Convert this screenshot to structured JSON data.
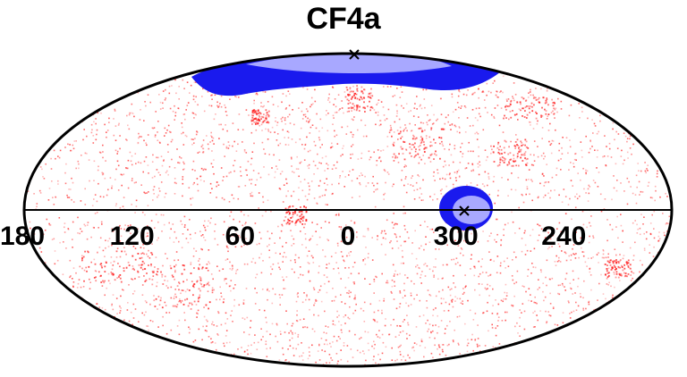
{
  "chart_data": {
    "type": "scatter",
    "title": "CF4a",
    "projection": "mollweide",
    "axis": "galactic longitude",
    "tick_labels": [
      {
        "lon": 180,
        "label": "180"
      },
      {
        "lon": 120,
        "label": "120"
      },
      {
        "lon": 60,
        "label": "60"
      },
      {
        "lon": 0,
        "label": "0"
      },
      {
        "lon": 300,
        "label": "300"
      },
      {
        "lon": 240,
        "label": "240"
      }
    ],
    "grid": "equator only",
    "series": [
      {
        "kind": "points",
        "color": "#ff3030",
        "description_count": 4000
      },
      {
        "kind": "confidence-region-68",
        "color": "#b3b3ff"
      },
      {
        "kind": "confidence-region-95",
        "color": "#1a1aff"
      }
    ],
    "markers": [
      {
        "symbol": "x",
        "lon": 0,
        "lat": 85
      },
      {
        "symbol": "x",
        "lon": 300,
        "lat": 0
      }
    ]
  },
  "colors": {
    "points": "#ff2020",
    "region_outer": "#1a1aee",
    "region_inner": "#a8a8ff"
  }
}
